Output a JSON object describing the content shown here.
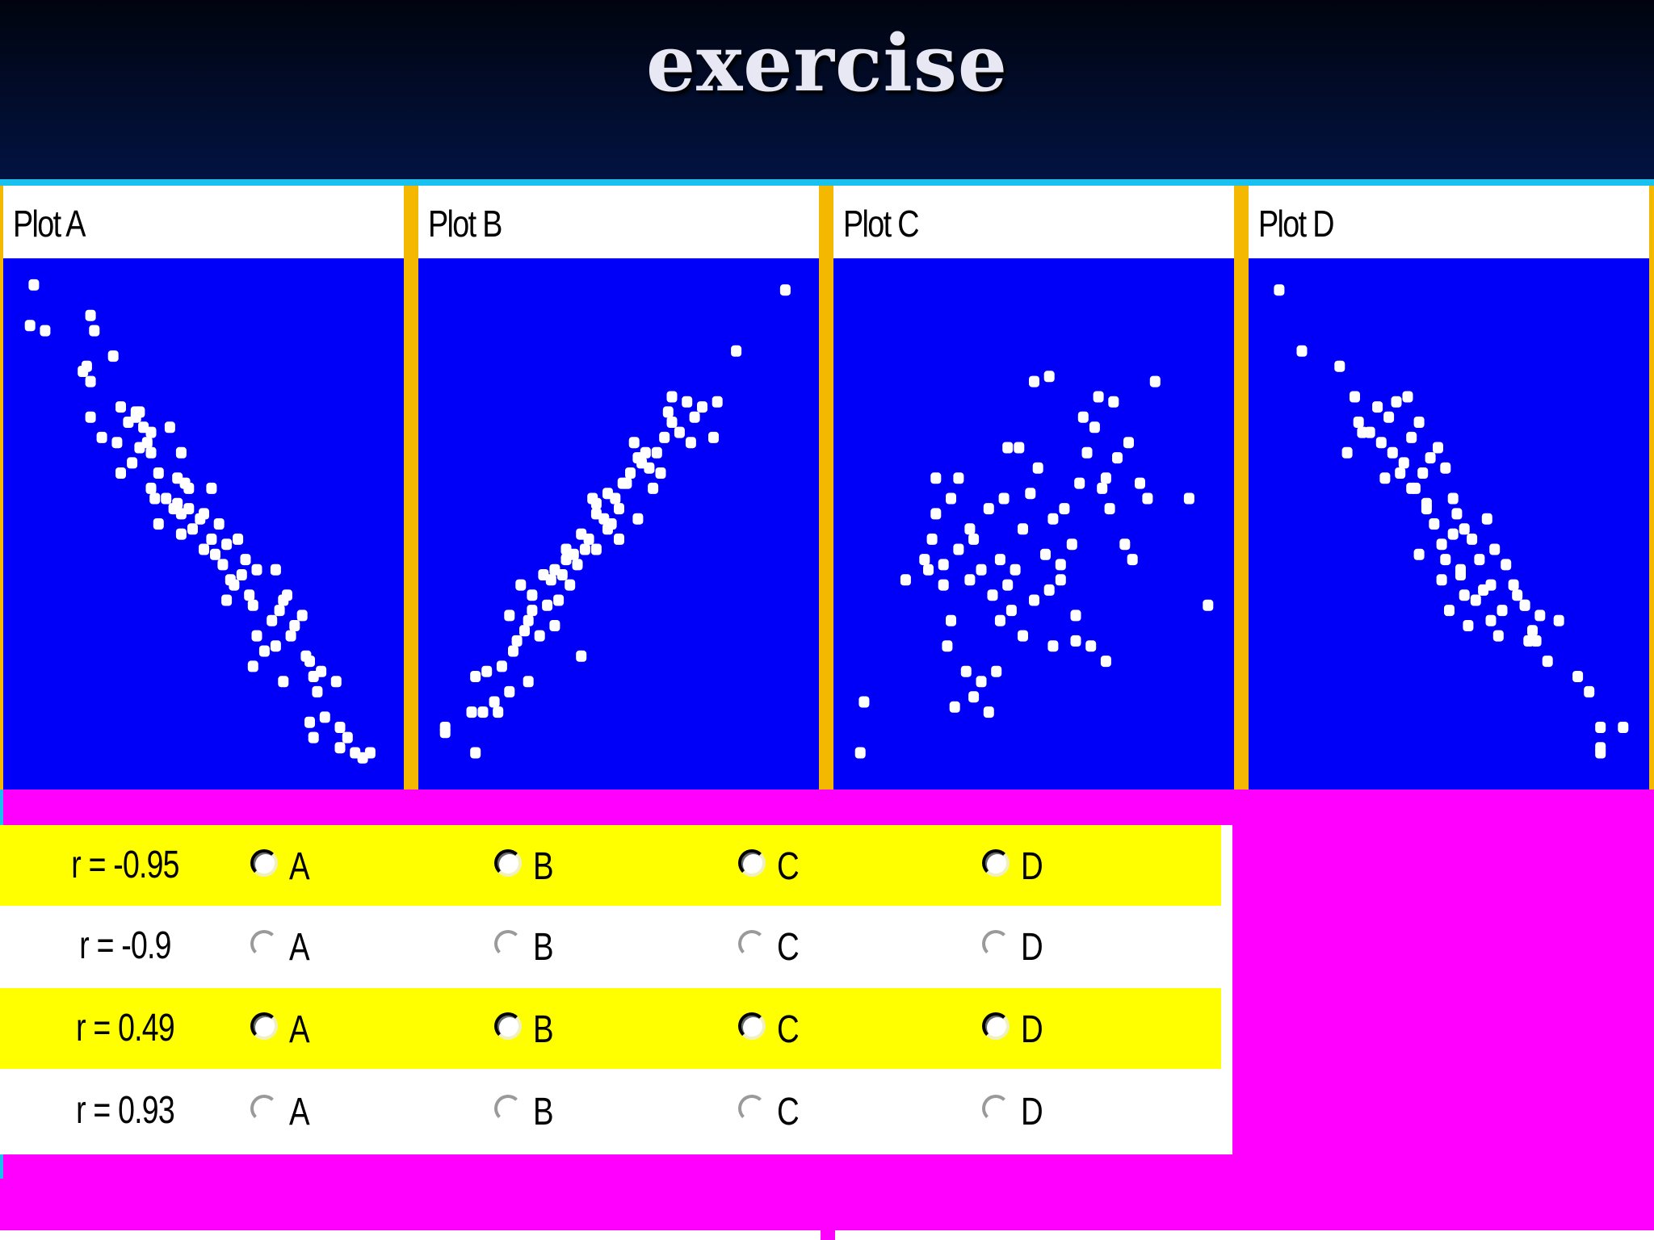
{
  "slide": {
    "title": "exercise"
  },
  "plots": [
    {
      "label": "Plot A"
    },
    {
      "label": "Plot B"
    },
    {
      "label": "Plot C"
    },
    {
      "label": "Plot D"
    }
  ],
  "colors": {
    "header": "#021342",
    "plot_background": "#0000f8",
    "plot_divider": "#f5b800",
    "page_background": "#ff00ff",
    "row_highlight": "#ffff00"
  },
  "answers": {
    "rows": [
      {
        "label": "r = -0.95",
        "options": [
          "A",
          "B",
          "C",
          "D"
        ]
      },
      {
        "label": "r = -0.9",
        "options": [
          "A",
          "B",
          "C",
          "D"
        ]
      },
      {
        "label": "r = 0.49",
        "options": [
          "A",
          "B",
          "C",
          "D"
        ]
      },
      {
        "label": "r = 0.93",
        "options": [
          "A",
          "B",
          "C",
          "D"
        ]
      }
    ]
  },
  "chart_data": [
    {
      "type": "scatter",
      "title": "Plot A",
      "x": [
        0.05,
        0.04,
        0.08,
        0.2,
        0.21,
        0.19,
        0.26,
        0.18,
        0.2,
        0.33,
        0.28,
        0.3,
        0.32,
        0.34,
        0.36,
        0.41,
        0.31,
        0.33,
        0.36,
        0.44,
        0.28,
        0.38,
        0.43,
        0.36,
        0.46,
        0.37,
        0.52,
        0.4,
        0.43,
        0.46,
        0.49,
        0.44,
        0.5,
        0.54,
        0.38,
        0.44,
        0.59,
        0.61,
        0.55,
        0.6,
        0.64,
        0.58,
        0.69,
        0.62,
        0.72,
        0.71,
        0.56,
        0.63,
        0.76,
        0.7,
        0.74,
        0.68,
        0.64,
        0.73,
        0.69,
        0.78,
        0.79,
        0.81,
        0.77,
        0.8,
        0.63,
        0.71,
        0.85,
        0.82,
        0.86,
        0.79,
        0.9,
        0.88,
        0.94,
        0.86,
        0.92,
        0.78,
        0.52,
        0.56,
        0.5,
        0.47,
        0.42,
        0.23,
        0.2,
        0.27,
        0.35,
        0.32,
        0.45,
        0.53,
        0.57,
        0.66
      ],
      "y": [
        0.97,
        0.89,
        0.88,
        0.91,
        0.88,
        0.81,
        0.83,
        0.8,
        0.78,
        0.72,
        0.73,
        0.7,
        0.72,
        0.69,
        0.68,
        0.69,
        0.62,
        0.65,
        0.64,
        0.64,
        0.6,
        0.6,
        0.59,
        0.57,
        0.57,
        0.55,
        0.57,
        0.55,
        0.54,
        0.53,
        0.51,
        0.52,
        0.52,
        0.5,
        0.5,
        0.48,
        0.47,
        0.43,
        0.42,
        0.4,
        0.41,
        0.38,
        0.41,
        0.36,
        0.36,
        0.35,
        0.35,
        0.34,
        0.32,
        0.33,
        0.3,
        0.31,
        0.28,
        0.28,
        0.26,
        0.23,
        0.2,
        0.21,
        0.24,
        0.17,
        0.22,
        0.19,
        0.19,
        0.12,
        0.06,
        0.08,
        0.05,
        0.08,
        0.05,
        0.1,
        0.04,
        0.11,
        0.47,
        0.46,
        0.45,
        0.49,
        0.53,
        0.67,
        0.71,
        0.66,
        0.66,
        0.71,
        0.58,
        0.44,
        0.39,
        0.25
      ]
    },
    {
      "type": "scatter",
      "title": "Plot B",
      "x": [
        0.04,
        0.12,
        0.04,
        0.14,
        0.17,
        0.12,
        0.19,
        0.15,
        0.22,
        0.23,
        0.29,
        0.26,
        0.21,
        0.27,
        0.31,
        0.24,
        0.34,
        0.32,
        0.37,
        0.3,
        0.35,
        0.39,
        0.36,
        0.41,
        0.44,
        0.38,
        0.4,
        0.46,
        0.48,
        0.42,
        0.49,
        0.5,
        0.51,
        0.44,
        0.53,
        0.47,
        0.55,
        0.52,
        0.56,
        0.57,
        0.6,
        0.58,
        0.62,
        0.54,
        0.64,
        0.66,
        0.63,
        0.69,
        0.7,
        0.68,
        0.64,
        0.72,
        0.75,
        0.76,
        0.61,
        0.59,
        0.55,
        0.5,
        0.47,
        0.44,
        0.43,
        0.36,
        0.33,
        0.27,
        0.25,
        0.94,
        0.81,
        0.21,
        0.18,
        0.11,
        0.26,
        0.33,
        0.4
      ],
      "y": [
        0.1,
        0.05,
        0.09,
        0.13,
        0.15,
        0.2,
        0.22,
        0.21,
        0.25,
        0.27,
        0.28,
        0.31,
        0.32,
        0.33,
        0.34,
        0.38,
        0.35,
        0.39,
        0.38,
        0.4,
        0.4,
        0.42,
        0.43,
        0.45,
        0.45,
        0.44,
        0.48,
        0.51,
        0.5,
        0.47,
        0.55,
        0.53,
        0.58,
        0.54,
        0.6,
        0.56,
        0.63,
        0.58,
        0.62,
        0.64,
        0.64,
        0.61,
        0.67,
        0.66,
        0.7,
        0.68,
        0.72,
        0.66,
        0.71,
        0.74,
        0.75,
        0.73,
        0.67,
        0.74,
        0.6,
        0.57,
        0.51,
        0.47,
        0.49,
        0.52,
        0.55,
        0.45,
        0.41,
        0.36,
        0.29,
        0.96,
        0.84,
        0.17,
        0.13,
        0.13,
        0.19,
        0.3,
        0.24
      ]
    },
    {
      "type": "scatter",
      "title": "Plot C",
      "x": [
        0.04,
        0.05,
        0.16,
        0.21,
        0.23,
        0.26,
        0.24,
        0.28,
        0.3,
        0.33,
        0.26,
        0.34,
        0.36,
        0.28,
        0.39,
        0.41,
        0.33,
        0.43,
        0.38,
        0.45,
        0.47,
        0.42,
        0.49,
        0.51,
        0.44,
        0.53,
        0.46,
        0.55,
        0.58,
        0.5,
        0.6,
        0.62,
        0.54,
        0.64,
        0.66,
        0.57,
        0.68,
        0.61,
        0.7,
        0.72,
        0.63,
        0.74,
        0.67,
        0.69,
        0.71,
        0.76,
        0.75,
        0.78,
        0.8,
        0.82,
        0.91,
        0.96,
        0.54,
        0.5,
        0.32,
        0.36,
        0.4,
        0.29,
        0.34,
        0.38,
        0.27,
        0.22,
        0.55,
        0.47,
        0.65,
        0.69,
        0.24,
        0.3,
        0.43,
        0.57,
        0.61,
        0.41
      ],
      "y": [
        0.05,
        0.15,
        0.39,
        0.43,
        0.47,
        0.42,
        0.52,
        0.55,
        0.45,
        0.39,
        0.38,
        0.47,
        0.41,
        0.31,
        0.36,
        0.43,
        0.49,
        0.38,
        0.53,
        0.41,
        0.49,
        0.55,
        0.56,
        0.61,
        0.33,
        0.44,
        0.65,
        0.51,
        0.53,
        0.35,
        0.46,
        0.58,
        0.37,
        0.64,
        0.69,
        0.42,
        0.57,
        0.32,
        0.53,
        0.63,
        0.71,
        0.46,
        0.75,
        0.59,
        0.74,
        0.43,
        0.66,
        0.58,
        0.55,
        0.78,
        0.55,
        0.34,
        0.79,
        0.78,
        0.21,
        0.19,
        0.21,
        0.14,
        0.16,
        0.13,
        0.26,
        0.41,
        0.26,
        0.28,
        0.26,
        0.23,
        0.59,
        0.59,
        0.65,
        0.39,
        0.27,
        0.31
      ]
    },
    {
      "type": "scatter",
      "title": "Plot D",
      "x": [
        0.05,
        0.11,
        0.21,
        0.25,
        0.26,
        0.31,
        0.29,
        0.34,
        0.36,
        0.39,
        0.32,
        0.35,
        0.4,
        0.42,
        0.38,
        0.45,
        0.43,
        0.47,
        0.41,
        0.49,
        0.44,
        0.51,
        0.52,
        0.46,
        0.54,
        0.48,
        0.56,
        0.6,
        0.58,
        0.53,
        0.62,
        0.59,
        0.65,
        0.57,
        0.64,
        0.67,
        0.61,
        0.7,
        0.68,
        0.72,
        0.74,
        0.63,
        0.71,
        0.55,
        0.5,
        0.37,
        0.4,
        0.44,
        0.53,
        0.61,
        0.7,
        0.73,
        0.76,
        0.79,
        0.84,
        0.87,
        0.9,
        0.9,
        0.9,
        0.96,
        0.27,
        0.23,
        0.33,
        0.42,
        0.48,
        0.54,
        0.49,
        0.51
      ],
      "y": [
        0.96,
        0.84,
        0.81,
        0.75,
        0.7,
        0.73,
        0.68,
        0.71,
        0.74,
        0.75,
        0.66,
        0.64,
        0.67,
        0.7,
        0.62,
        0.63,
        0.6,
        0.65,
        0.57,
        0.61,
        0.53,
        0.55,
        0.52,
        0.5,
        0.49,
        0.46,
        0.47,
        0.51,
        0.43,
        0.4,
        0.45,
        0.37,
        0.42,
        0.35,
        0.33,
        0.38,
        0.31,
        0.34,
        0.36,
        0.29,
        0.32,
        0.28,
        0.27,
        0.3,
        0.33,
        0.6,
        0.57,
        0.54,
        0.41,
        0.38,
        0.34,
        0.27,
        0.23,
        0.31,
        0.2,
        0.17,
        0.1,
        0.06,
        0.05,
        0.1,
        0.68,
        0.64,
        0.59,
        0.44,
        0.39,
        0.36,
        0.43,
        0.48
      ]
    }
  ]
}
